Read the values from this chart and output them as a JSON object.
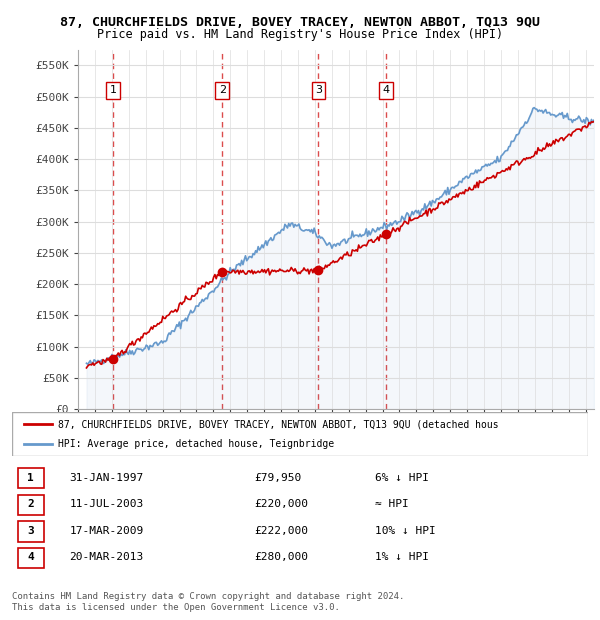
{
  "title": "87, CHURCHFIELDS DRIVE, BOVEY TRACEY, NEWTON ABBOT, TQ13 9QU",
  "subtitle": "Price paid vs. HM Land Registry's House Price Index (HPI)",
  "ylabel_ticks": [
    "£0",
    "£50K",
    "£100K",
    "£150K",
    "£200K",
    "£250K",
    "£300K",
    "£350K",
    "£400K",
    "£450K",
    "£500K",
    "£550K"
  ],
  "ytick_values": [
    0,
    50000,
    100000,
    150000,
    200000,
    250000,
    300000,
    350000,
    400000,
    450000,
    500000,
    550000
  ],
  "sale_dates": [
    "1997-01-31",
    "2003-07-11",
    "2009-03-17",
    "2013-03-20"
  ],
  "sale_prices": [
    79950,
    220000,
    222000,
    280000
  ],
  "sale_labels": [
    "1",
    "2",
    "3",
    "4"
  ],
  "sale_info": [
    {
      "num": "1",
      "date": "31-JAN-1997",
      "price": "£79,950",
      "hpi_note": "6% ↓ HPI"
    },
    {
      "num": "2",
      "date": "11-JUL-2003",
      "price": "£220,000",
      "hpi_note": "≈ HPI"
    },
    {
      "num": "3",
      "date": "17-MAR-2009",
      "price": "£222,000",
      "hpi_note": "10% ↓ HPI"
    },
    {
      "num": "4",
      "date": "20-MAR-2013",
      "price": "£280,000",
      "hpi_note": "1% ↓ HPI"
    }
  ],
  "legend_property_label": "87, CHURCHFIELDS DRIVE, BOVEY TRACEY, NEWTON ABBOT, TQ13 9QU (detached hous",
  "legend_hpi_label": "HPI: Average price, detached house, Teignbridge",
  "footer": "Contains HM Land Registry data © Crown copyright and database right 2024.\nThis data is licensed under the Open Government Licence v3.0.",
  "property_line_color": "#cc0000",
  "hpi_line_color": "#6699cc",
  "sale_marker_color": "#cc0000",
  "dashed_line_color": "#cc0000",
  "background_color": "#ffffff",
  "grid_color": "#dddddd",
  "xlim_start": 1995.5,
  "xlim_end": 2025.5,
  "ylim_min": 0,
  "ylim_max": 575000
}
